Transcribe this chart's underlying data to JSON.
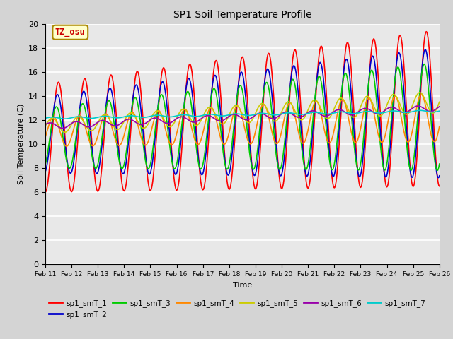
{
  "title": "SP1 Soil Temperature Profile",
  "xlabel": "Time",
  "ylabel": "Soil Temperature (C)",
  "ylim": [
    0,
    20
  ],
  "yticks": [
    0,
    2,
    4,
    6,
    8,
    10,
    12,
    14,
    16,
    18,
    20
  ],
  "xtick_labels": [
    "Feb 11",
    "Feb 12",
    "Feb 13",
    "Feb 14",
    "Feb 15",
    "Feb 16",
    "Feb 17",
    "Feb 18",
    "Feb 19",
    "Feb 20",
    "Feb 21",
    "Feb 22",
    "Feb 23",
    "Feb 24",
    "Feb 25",
    "Feb 26"
  ],
  "colors": {
    "sp1_smT_1": "#ff0000",
    "sp1_smT_2": "#0000cc",
    "sp1_smT_3": "#00cc00",
    "sp1_smT_4": "#ff8800",
    "sp1_smT_5": "#cccc00",
    "sp1_smT_6": "#9900aa",
    "sp1_smT_7": "#00cccc"
  },
  "annotation_text": "TZ_osu",
  "annotation_color": "#cc0000",
  "annotation_bg": "#ffffcc",
  "annotation_border": "#aa8800",
  "fig_bg": "#d4d4d4",
  "plot_bg": "#e8e8e8",
  "grid_color": "#ffffff",
  "n_days": 15
}
